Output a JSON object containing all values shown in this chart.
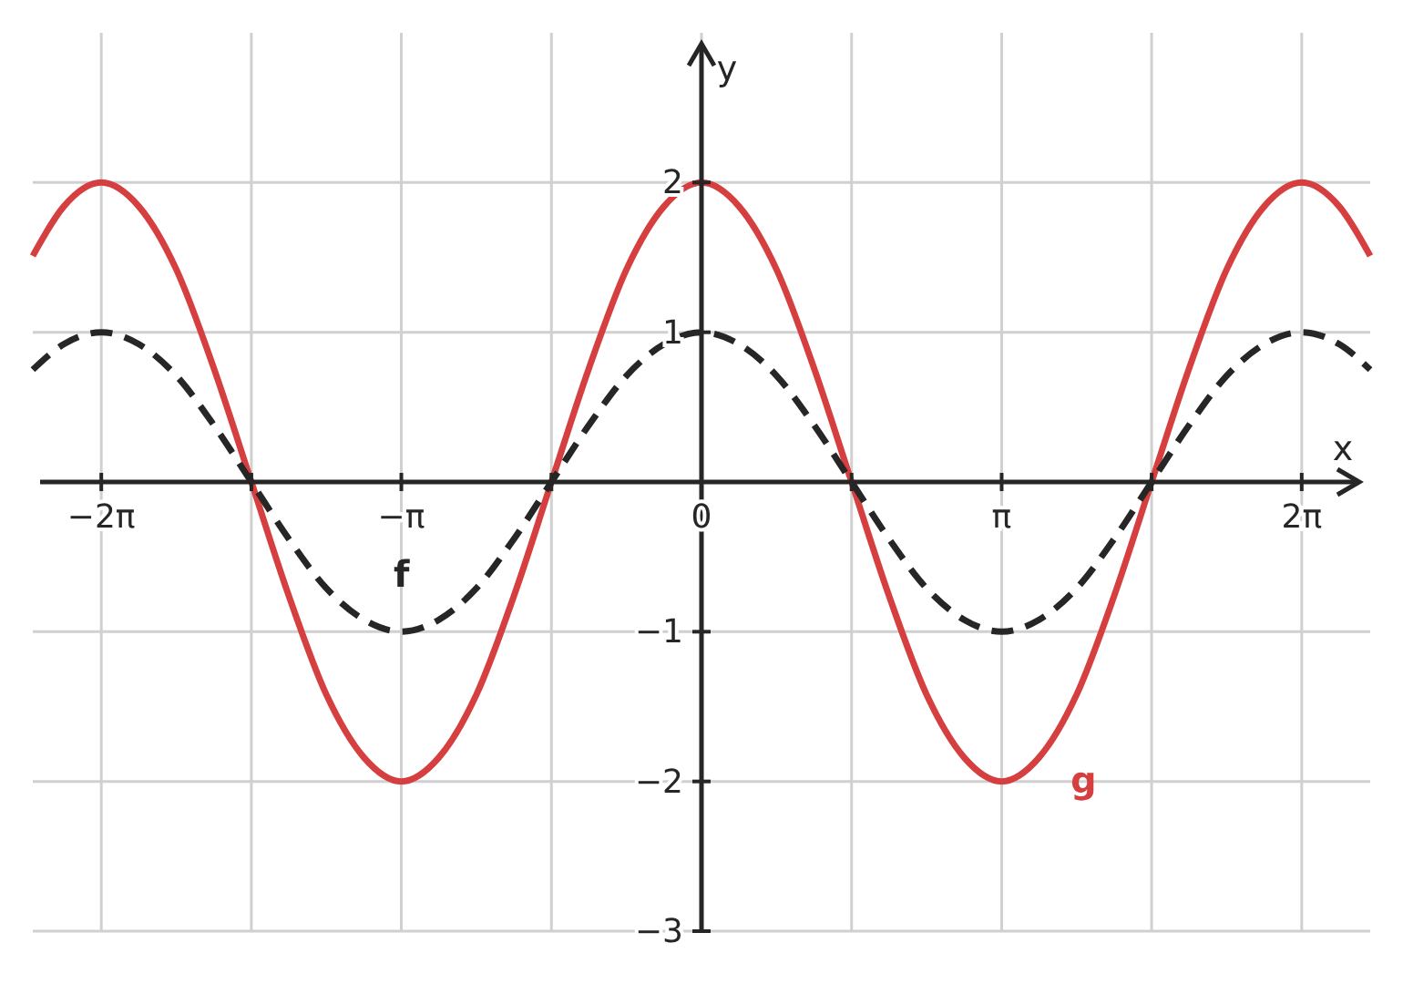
{
  "chart_data": {
    "type": "line",
    "xlabel": "x",
    "ylabel": "y",
    "xlim": [
      -7,
      7
    ],
    "ylim": [
      -3,
      3
    ],
    "xticks": [
      {
        "value": -6.283,
        "label": "−2π"
      },
      {
        "value": -4.712,
        "label": null
      },
      {
        "value": -3.142,
        "label": "−π"
      },
      {
        "value": -1.571,
        "label": null
      },
      {
        "value": 0,
        "label": "0"
      },
      {
        "value": 1.571,
        "label": null
      },
      {
        "value": 3.142,
        "label": "π"
      },
      {
        "value": 4.712,
        "label": null
      },
      {
        "value": 6.283,
        "label": "2π"
      }
    ],
    "yticks": [
      -3,
      -2,
      -1,
      1,
      2
    ],
    "grid": true,
    "x": [
      -7,
      -6.676,
      -6.283,
      -5.89,
      -5.498,
      -5.105,
      -4.712,
      -4.32,
      -3.927,
      -3.534,
      -3.142,
      -2.749,
      -2.356,
      -1.963,
      -1.571,
      -1.178,
      -0.785,
      -0.393,
      0,
      0.393,
      0.785,
      1.178,
      1.571,
      1.963,
      2.356,
      2.749,
      3.142,
      3.534,
      3.927,
      4.32,
      4.712,
      5.105,
      5.498,
      5.89,
      6.283,
      6.676,
      7
    ],
    "series": [
      {
        "name": "g",
        "color": "#d63f3f",
        "line_style": "solid",
        "values": [
          1.51,
          1.84,
          2,
          1.84,
          1.42,
          0.76,
          0,
          -0.76,
          -1.42,
          -1.84,
          -2,
          -1.84,
          -1.42,
          -0.76,
          0,
          0.76,
          1.42,
          1.84,
          2,
          1.84,
          1.42,
          0.76,
          0,
          -0.76,
          -1.42,
          -1.84,
          -2,
          -1.84,
          -1.42,
          -0.76,
          0,
          0.76,
          1.42,
          1.84,
          2,
          1.84,
          1.51
        ]
      },
      {
        "name": "f",
        "color": "#262626",
        "line_style": "dashed",
        "values": [
          0.75,
          0.92,
          1,
          0.92,
          0.71,
          0.38,
          0,
          -0.38,
          -0.71,
          -0.92,
          -1,
          -0.92,
          -0.71,
          -0.38,
          0,
          0.38,
          0.71,
          0.92,
          1,
          0.92,
          0.71,
          0.38,
          0,
          -0.38,
          -0.71,
          -0.92,
          -1,
          -0.92,
          -0.71,
          -0.38,
          0,
          0.38,
          0.71,
          0.92,
          1,
          0.92,
          0.75
        ]
      }
    ]
  }
}
